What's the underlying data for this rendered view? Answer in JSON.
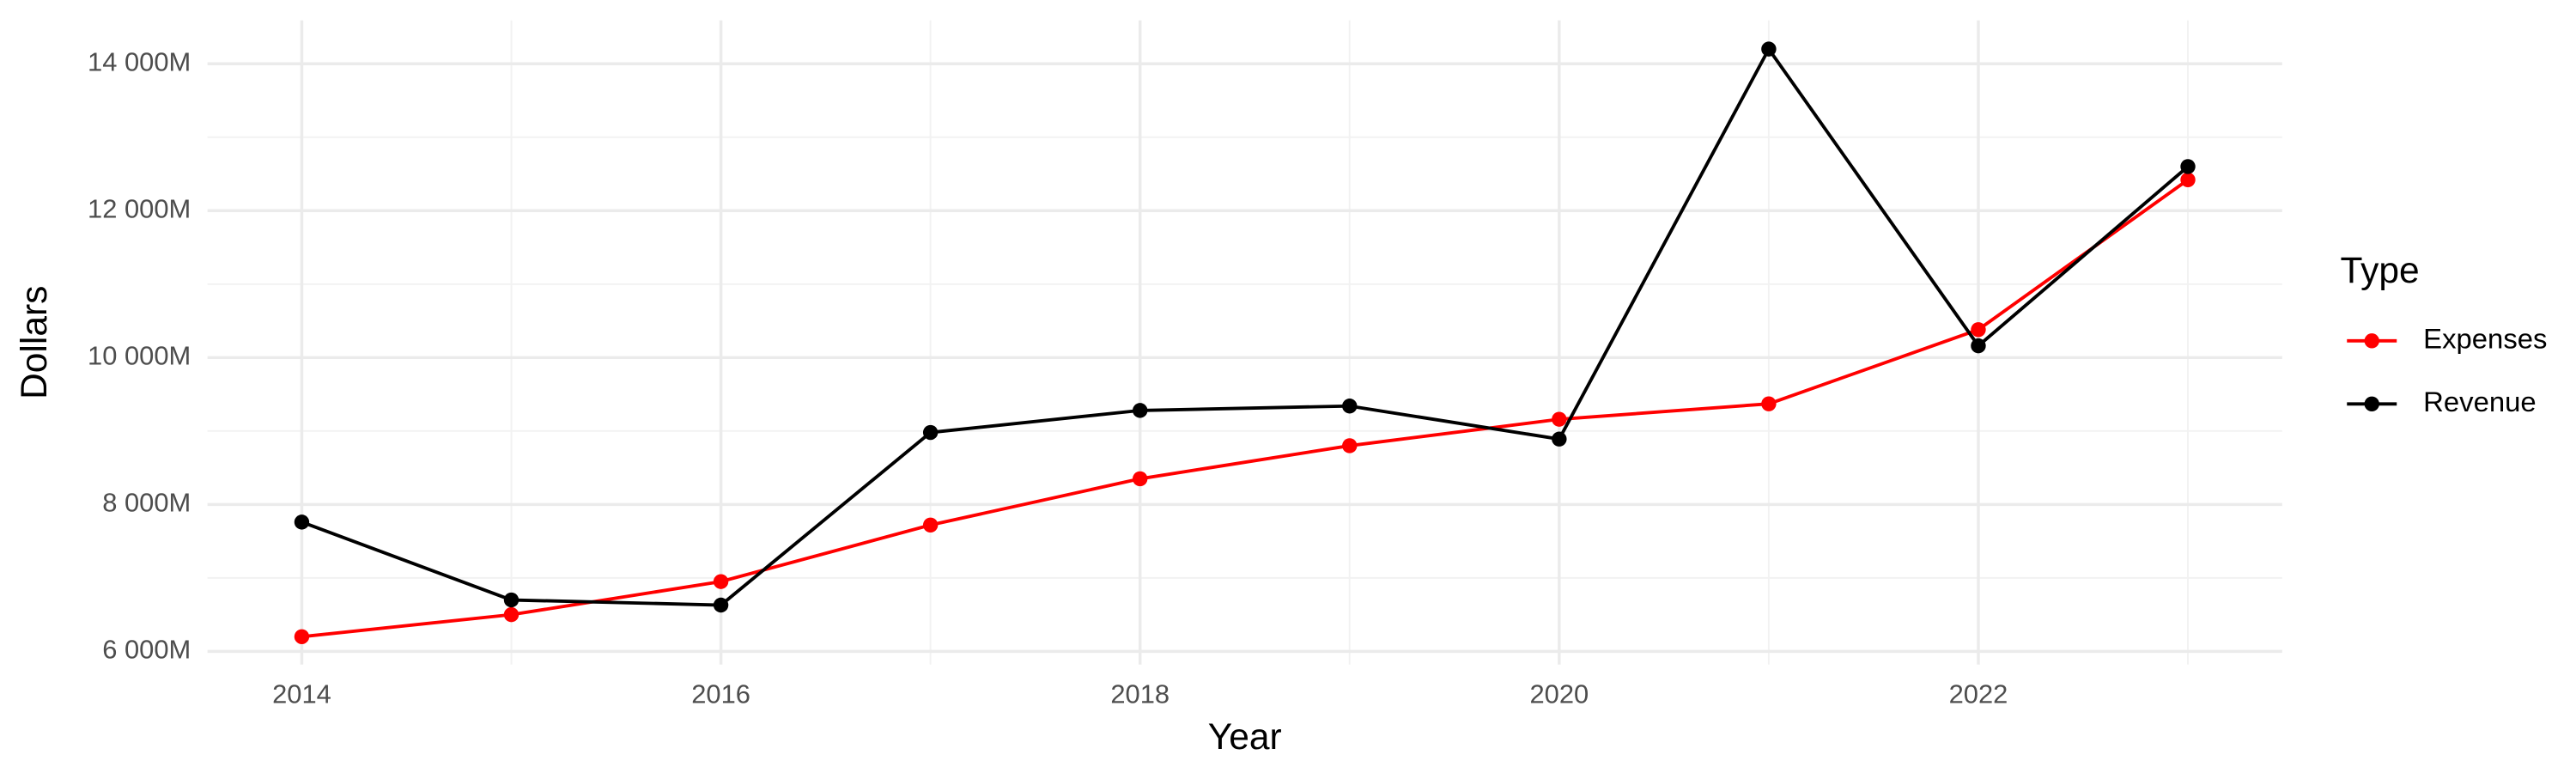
{
  "chart_data": {
    "type": "line",
    "x_label": "Year",
    "y_label": "Dollars",
    "legend_title": "Type",
    "legend_position": "right",
    "grid": true,
    "x": [
      2014,
      2015,
      2016,
      2017,
      2018,
      2019,
      2020,
      2021,
      2022,
      2023
    ],
    "series": [
      {
        "name": "Expenses",
        "color": "#ff0000",
        "values": [
          6200,
          6500,
          6950,
          7720,
          8350,
          8800,
          9160,
          9370,
          10380,
          12420
        ]
      },
      {
        "name": "Revenue",
        "color": "#000000",
        "values": [
          7760,
          6700,
          6630,
          8980,
          9280,
          9340,
          8890,
          14200,
          10160,
          12600
        ]
      }
    ],
    "xlim": [
      2013.55,
      2023.45
    ],
    "xticks": [
      2014,
      2016,
      2018,
      2020,
      2022
    ],
    "ylim": [
      5820,
      14590
    ],
    "yticks": [
      {
        "value": 6000,
        "label": "6 000M"
      },
      {
        "value": 8000,
        "label": "8 000M"
      },
      {
        "value": 10000,
        "label": "10 000M"
      },
      {
        "value": 12000,
        "label": "12 000M"
      },
      {
        "value": 14000,
        "label": "14 000M"
      }
    ]
  }
}
